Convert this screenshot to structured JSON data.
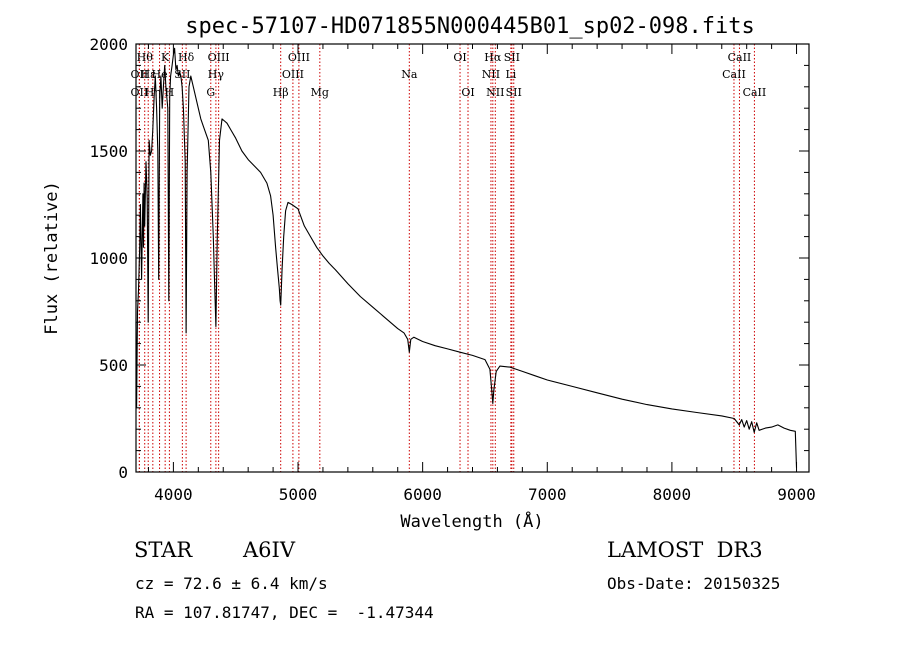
{
  "chart_data": {
    "type": "line",
    "title": "spec-57107-HD071855N000445B01_sp02-098.fits",
    "xlabel": "Wavelength (Å)",
    "ylabel": "Flux (relative)",
    "xlim": [
      3700,
      9100
    ],
    "ylim": [
      0,
      2000
    ],
    "xticks": [
      4000,
      5000,
      6000,
      7000,
      8000,
      9000
    ],
    "yticks": [
      0,
      500,
      1000,
      1500,
      2000
    ],
    "series": [
      {
        "name": "flux",
        "x": [
          3700,
          3705,
          3712,
          3720,
          3730,
          3735,
          3745,
          3755,
          3760,
          3765,
          3770,
          3780,
          3790,
          3798,
          3805,
          3815,
          3825,
          3835,
          3845,
          3855,
          3865,
          3875,
          3882,
          3890,
          3900,
          3910,
          3920,
          3930,
          3940,
          3955,
          3963,
          3970,
          3978,
          3990,
          4000,
          4010,
          4020,
          4030,
          4040,
          4050,
          4060,
          4070,
          4080,
          4095,
          4102,
          4110,
          4125,
          4140,
          4160,
          4180,
          4200,
          4220,
          4250,
          4280,
          4300,
          4320,
          4330,
          4341,
          4352,
          4370,
          4390,
          4410,
          4430,
          4460,
          4500,
          4550,
          4600,
          4650,
          4700,
          4750,
          4780,
          4800,
          4820,
          4835,
          4850,
          4856,
          4861,
          4866,
          4872,
          4885,
          4900,
          4920,
          4950,
          5000,
          5050,
          5100,
          5150,
          5200,
          5250,
          5300,
          5400,
          5500,
          5600,
          5700,
          5800,
          5850,
          5880,
          5893,
          5905,
          5930,
          6000,
          6100,
          6200,
          6300,
          6400,
          6500,
          6540,
          6555,
          6563,
          6571,
          6590,
          6620,
          6700,
          6800,
          6900,
          7000,
          7200,
          7400,
          7600,
          7800,
          8000,
          8200,
          8400,
          8500,
          8540,
          8560,
          8580,
          8600,
          8620,
          8640,
          8660,
          8680,
          8700,
          8750,
          8800,
          8850,
          8900,
          8950,
          8990,
          9000
        ],
        "y": [
          700,
          300,
          750,
          850,
          1050,
          1250,
          900,
          1300,
          1050,
          1350,
          1150,
          1450,
          1280,
          700,
          1550,
          1480,
          1500,
          1600,
          1750,
          1850,
          1700,
          1500,
          900,
          1750,
          1850,
          1700,
          1800,
          1900,
          1800,
          1700,
          800,
          1750,
          1850,
          1900,
          1950,
          1980,
          1880,
          1900,
          1850,
          1870,
          1850,
          1800,
          1700,
          1450,
          650,
          1400,
          1800,
          1850,
          1800,
          1750,
          1700,
          1650,
          1600,
          1550,
          1400,
          1100,
          900,
          680,
          1100,
          1550,
          1650,
          1640,
          1630,
          1600,
          1560,
          1500,
          1460,
          1430,
          1400,
          1350,
          1290,
          1200,
          1050,
          950,
          860,
          800,
          780,
          850,
          950,
          1100,
          1220,
          1260,
          1250,
          1230,
          1150,
          1100,
          1050,
          1010,
          975,
          945,
          880,
          820,
          770,
          720,
          670,
          650,
          620,
          560,
          620,
          630,
          610,
          590,
          575,
          560,
          545,
          525,
          480,
          380,
          320,
          380,
          470,
          495,
          490,
          470,
          450,
          430,
          400,
          370,
          340,
          315,
          295,
          278,
          262,
          250,
          220,
          245,
          210,
          240,
          200,
          235,
          185,
          230,
          195,
          205,
          210,
          220,
          205,
          195,
          190,
          20
        ]
      }
    ],
    "lines": [
      {
        "wavelength": 3727,
        "label": "OII",
        "row": 2
      },
      {
        "wavelength": 3727,
        "label": "OII",
        "row": 3
      },
      {
        "wavelength": 3770,
        "label": "Hθ",
        "row": 1
      },
      {
        "wavelength": 3798,
        "label": "Hε",
        "row": 2
      },
      {
        "wavelength": 3835,
        "label": "Hη",
        "row": 3
      },
      {
        "wavelength": 3889,
        "label": "He",
        "row": 2
      },
      {
        "wavelength": 3934,
        "label": "K",
        "row": 1
      },
      {
        "wavelength": 3968,
        "label": "H",
        "row": 3
      },
      {
        "wavelength": 4072,
        "label": "SII",
        "row": 2
      },
      {
        "wavelength": 4102,
        "label": "Hδ",
        "row": 1
      },
      {
        "wavelength": 4300,
        "label": "G",
        "row": 3
      },
      {
        "wavelength": 4341,
        "label": "Hγ",
        "row": 2
      },
      {
        "wavelength": 4363,
        "label": "OIII",
        "row": 1
      },
      {
        "wavelength": 4861,
        "label": "Hβ",
        "row": 3
      },
      {
        "wavelength": 4959,
        "label": "OIII",
        "row": 2
      },
      {
        "wavelength": 5007,
        "label": "OIII",
        "row": 1
      },
      {
        "wavelength": 5175,
        "label": "Mg",
        "row": 3
      },
      {
        "wavelength": 5893,
        "label": "Na",
        "row": 2
      },
      {
        "wavelength": 6300,
        "label": "OI",
        "row": 1
      },
      {
        "wavelength": 6364,
        "label": "OI",
        "row": 3
      },
      {
        "wavelength": 6548,
        "label": "NII",
        "row": 2
      },
      {
        "wavelength": 6563,
        "label": "Hα",
        "row": 1
      },
      {
        "wavelength": 6583,
        "label": "NII",
        "row": 3
      },
      {
        "wavelength": 6708,
        "label": "Li",
        "row": 2
      },
      {
        "wavelength": 6716,
        "label": "SII",
        "row": 1
      },
      {
        "wavelength": 6731,
        "label": "SII",
        "row": 3
      },
      {
        "wavelength": 8498,
        "label": "CaII",
        "row": 2
      },
      {
        "wavelength": 8542,
        "label": "CaII",
        "row": 1
      },
      {
        "wavelength": 8662,
        "label": "CaII",
        "row": 3
      }
    ]
  },
  "info": {
    "object_class": "STAR",
    "subclass": "A6IV",
    "survey": "LAMOST  DR3",
    "cz": "cz = 72.6 ± 6.4 km/s",
    "obs_date": "Obs-Date: 20150325",
    "coords": "RA = 107.81747, DEC =  -1.47344"
  },
  "colors": {
    "line_marker": "#cc0000",
    "spectrum": "#000000",
    "axes": "#000000"
  }
}
